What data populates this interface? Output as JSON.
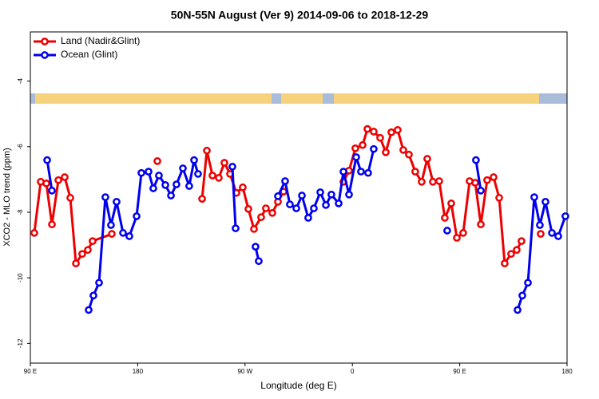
{
  "chart_data": {
    "type": "line",
    "title": "50N-55N August (Ver 9)   2014-09-06 to 2018-12-29",
    "x_label": "Longitude (deg E)",
    "y_label": "XCO2 - MLO trend (ppm)",
    "xlim": [
      90,
      540
    ],
    "xticks": [
      {
        "value": 90,
        "label": "90 E"
      },
      180,
      {
        "value": 270,
        "label": "90 W"
      },
      {
        "value": 360,
        "label": "0"
      },
      {
        "value": 450,
        "label": "90 E"
      },
      {
        "value": 540,
        "label": "180"
      }
    ],
    "ylim": [
      -12.6,
      -2.5
    ],
    "yticks": [
      -12,
      -10,
      -8,
      -6,
      -4
    ],
    "legend": "upper left",
    "series": [
      {
        "name": "Land (Nadir&Glint)",
        "color": "#ee0000",
        "x": [
          93.3,
          98.7,
          103.4,
          108.1,
          113.5,
          118.8,
          123.5,
          128.2,
          133.5,
          138.2,
          142.2,
          158.3,
          null,
          196.5,
          null,
          234.0,
          238.0,
          242.7,
          248.0,
          252.7,
          257.4,
          262.8,
          268.1,
          272.8,
          277.5,
          283.5,
          287.5,
          292.9,
          297.6,
          302.3,
          null,
          352.5,
          357.2,
          362.5,
          368.6,
          372.6,
          377.9,
          383.3,
          388.0,
          392.7,
          398.0,
          402.7,
          407.4,
          412.7,
          418.1,
          422.8,
          427.5,
          432.8,
          437.5,
          442.9,
          447.6,
          452.9,
          458.3,
          463.0,
          467.7,
          473.0,
          478.4,
          483.1,
          487.7,
          493.1,
          497.8,
          501.8,
          null,
          517.9
        ],
        "values": [
          -8.63,
          -7.07,
          -7.12,
          -8.37,
          -7.02,
          -6.93,
          -7.56,
          -9.56,
          -9.27,
          -9.15,
          -8.88,
          -8.66,
          null,
          -6.44,
          null,
          -7.59,
          -6.12,
          -6.88,
          -6.95,
          -6.49,
          -6.83,
          -7.41,
          -7.24,
          -7.9,
          -8.51,
          -8.15,
          -7.88,
          -8.02,
          -7.68,
          -7.37,
          null,
          -7.07,
          -6.73,
          -6.05,
          -5.95,
          -5.46,
          -5.54,
          -5.73,
          -6.17,
          -5.56,
          -5.49,
          -6.1,
          -6.24,
          -6.76,
          -7.07,
          -6.37,
          -7.07,
          -7.05,
          -8.17,
          -7.73,
          -8.78,
          -8.63,
          -7.05,
          -7.1,
          -8.37,
          -7.02,
          -6.93,
          -7.56,
          -9.56,
          -9.27,
          -9.15,
          -8.88,
          null,
          -8.66
        ]
      },
      {
        "name": "Ocean (Glint)",
        "color": "#0000ee",
        "x": [
          104.1,
          108.1,
          null,
          138.9,
          142.9,
          147.6,
          152.9,
          157.6,
          162.3,
          167.7,
          173.0,
          179.1,
          183.1,
          189.1,
          193.1,
          197.8,
          203.2,
          207.9,
          212.5,
          217.9,
          223.2,
          227.3,
          230.6,
          null,
          259.4,
          262.1,
          null,
          278.8,
          281.5,
          null,
          297.6,
          303.6,
          307.6,
          313.0,
          317.7,
          323.0,
          327.7,
          333.1,
          337.8,
          342.4,
          348.5,
          352.5,
          357.2,
          363.2,
          367.2,
          373.2,
          377.9,
          null,
          439.5,
          null,
          463.6,
          467.7,
          null,
          498.5,
          502.5,
          507.2,
          512.5,
          517.2,
          521.9,
          527.3,
          532.6,
          538.6
        ],
        "values": [
          -6.41,
          -7.34,
          null,
          -10.98,
          -10.54,
          -10.15,
          -7.54,
          -8.39,
          -7.68,
          -8.63,
          -8.73,
          -8.12,
          -6.8,
          -6.76,
          -7.27,
          -6.88,
          -7.17,
          -7.49,
          -7.15,
          -6.66,
          -7.2,
          -6.41,
          -6.83,
          null,
          -6.61,
          -8.49,
          null,
          -9.05,
          -9.49,
          null,
          -7.51,
          -7.05,
          -7.76,
          -7.88,
          -7.49,
          -8.17,
          -7.88,
          -7.39,
          -7.78,
          -7.46,
          -7.73,
          -6.76,
          -7.46,
          -6.32,
          -6.76,
          -6.8,
          -6.07,
          null,
          -8.56,
          null,
          -6.41,
          -7.34,
          null,
          -10.98,
          -10.54,
          -10.15,
          -7.54,
          -8.39,
          -7.68,
          -8.63,
          -8.73,
          -8.12
        ]
      }
    ]
  }
}
